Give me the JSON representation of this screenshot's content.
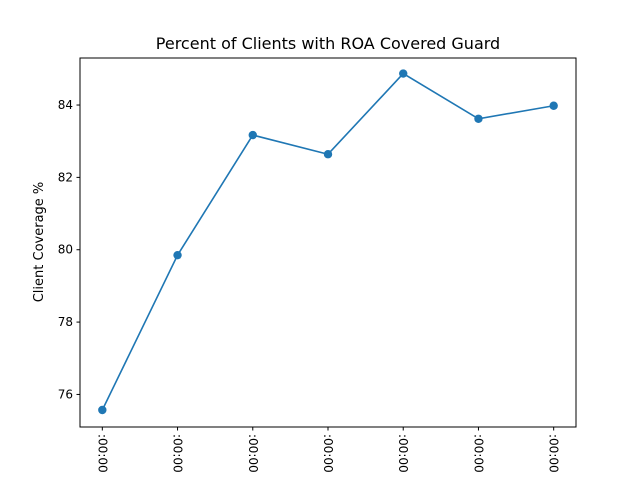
{
  "chart_data": {
    "type": "line",
    "title": "Percent of Clients with ROA Covered Guard",
    "xlabel": "",
    "ylabel": "Client Coverage %",
    "x_tick_labels": [
      ":00:00",
      ":00:00",
      ":00:00",
      ":00:00",
      ":00:00",
      ":00:00",
      ":00:00"
    ],
    "series": [
      {
        "values": [
          75.57,
          79.85,
          83.17,
          82.64,
          84.87,
          83.62,
          83.98
        ]
      }
    ],
    "yticks": [
      76,
      78,
      80,
      82,
      84
    ],
    "ylim": [
      75.1,
      85.3
    ],
    "grid": false,
    "legend": "none",
    "colors": {
      "line": "#1f77b4",
      "axes": "#000000"
    },
    "marker": "circle"
  }
}
